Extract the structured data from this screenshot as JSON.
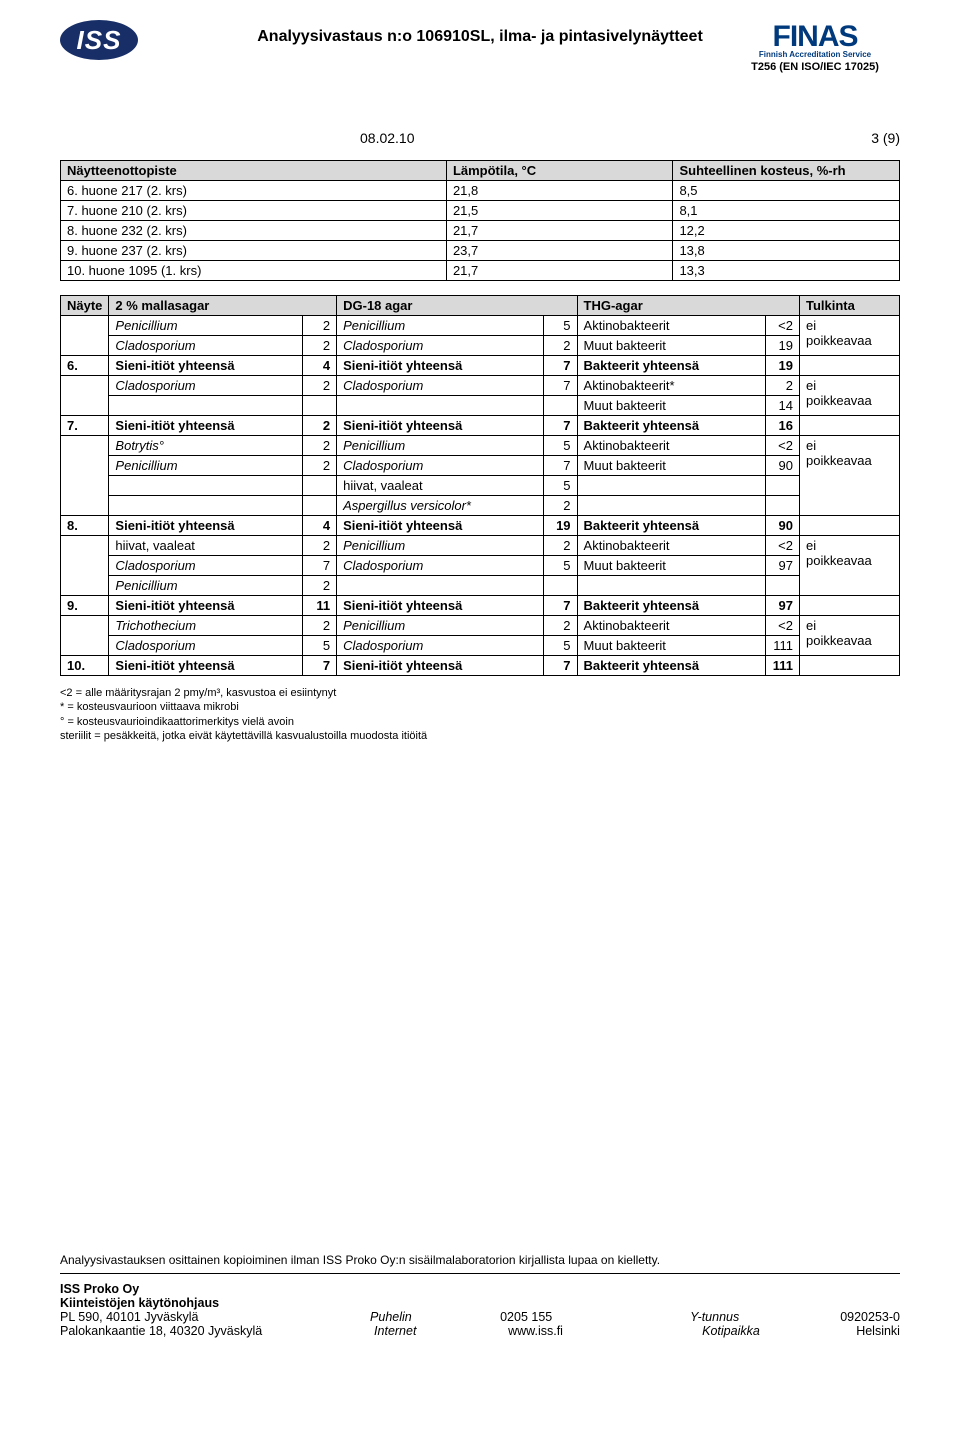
{
  "header": {
    "iss_logo_text": "ISS",
    "doc_title": "Analyysivastaus n:o 106910SL, ilma- ja pintasivelynäytteet",
    "finas_word": "FINAS",
    "finas_sub": "Finnish Accreditation Service",
    "finas_code": "T256 (EN ISO/IEC 17025)",
    "date": "08.02.10",
    "page": "3 (9)"
  },
  "env_table": {
    "headers": [
      "Näytteenottopiste",
      "Lämpötila, °C",
      "Suhteellinen kosteus, %-rh"
    ],
    "col_widths": [
      "46%",
      "27%",
      "27%"
    ],
    "rows": [
      [
        "6. huone 217 (2. krs)",
        "21,8",
        "8,5"
      ],
      [
        "7. huone 210 (2. krs)",
        "21,5",
        "8,1"
      ],
      [
        "8. huone 232 (2. krs)",
        "21,7",
        "12,2"
      ],
      [
        "9. huone 237 (2. krs)",
        "23,7",
        "13,8"
      ],
      [
        "10. huone 1095 (1. krs)",
        "21,7",
        "13,3"
      ]
    ]
  },
  "main_table": {
    "headers": [
      "Näyte",
      "2 % mallasagar",
      "DG-18 agar",
      "THG-agar",
      "Tulkinta"
    ],
    "groups": [
      {
        "rows": [
          [
            "Penicillium",
            "2",
            "Penicillium",
            "5",
            "Aktinobakteerit",
            "<2",
            "ei"
          ],
          [
            "Cladosporium",
            "2",
            "Cladosporium",
            "2",
            "Muut bakteerit",
            "19",
            "poikkeavaa"
          ]
        ],
        "totals_id": "6.",
        "totals": [
          "Sieni-itiöt yhteensä",
          "4",
          "Sieni-itiöt yhteensä",
          "7",
          "Bakteerit yhteensä",
          "19"
        ]
      },
      {
        "rows": [
          [
            "Cladosporium",
            "2",
            "Cladosporium",
            "7",
            "Aktinobakteerit*",
            "2",
            "ei"
          ],
          [
            "",
            "",
            "",
            "",
            "Muut bakteerit",
            "14",
            "poikkeavaa"
          ]
        ],
        "totals_id": "7.",
        "totals": [
          "Sieni-itiöt yhteensä",
          "2",
          "Sieni-itiöt yhteensä",
          "7",
          "Bakteerit yhteensä",
          "16"
        ]
      },
      {
        "rows": [
          [
            "Botrytis°",
            "2",
            "Penicillium",
            "5",
            "Aktinobakteerit",
            "<2",
            "ei"
          ],
          [
            "Penicillium",
            "2",
            "Cladosporium",
            "7",
            "Muut bakteerit",
            "90",
            "poikkeavaa"
          ],
          [
            "",
            "",
            "hiivat, vaaleat",
            "5",
            "",
            "",
            ""
          ],
          [
            "",
            "",
            "Aspergillus versicolor*",
            "2",
            "",
            "",
            ""
          ]
        ],
        "totals_id": "8.",
        "totals": [
          "Sieni-itiöt yhteensä",
          "4",
          "Sieni-itiöt yhteensä",
          "19",
          "Bakteerit yhteensä",
          "90"
        ]
      },
      {
        "rows": [
          [
            "hiivat, vaaleat",
            "2",
            "Penicillium",
            "2",
            "Aktinobakteerit",
            "<2",
            "ei"
          ],
          [
            "Cladosporium",
            "7",
            "Cladosporium",
            "5",
            "Muut bakteerit",
            "97",
            "poikkeavaa"
          ],
          [
            "Penicillium",
            "2",
            "",
            "",
            "",
            "",
            ""
          ]
        ],
        "totals_id": "9.",
        "totals": [
          "Sieni-itiöt yhteensä",
          "11",
          "Sieni-itiöt yhteensä",
          "7",
          "Bakteerit yhteensä",
          "97"
        ]
      },
      {
        "rows": [
          [
            "Trichothecium",
            "2",
            "Penicillium",
            "2",
            "Aktinobakteerit",
            "<2",
            "ei"
          ],
          [
            "Cladosporium",
            "5",
            "Cladosporium",
            "5",
            "Muut bakteerit",
            "111",
            "poikkeavaa"
          ]
        ],
        "totals_id": "10.",
        "totals": [
          "Sieni-itiöt yhteensä",
          "7",
          "Sieni-itiöt yhteensä",
          "7",
          "Bakteerit yhteensä",
          "111"
        ]
      }
    ]
  },
  "footnotes": [
    "<2 = alle määritysrajan 2 pmy/m³, kasvustoa ei esiintynyt",
    "* = kosteusvaurioon viittaava mikrobi",
    "° = kosteusvaurioindikaattorimerkitys vielä avoin",
    "steriilit = pesäkkeitä, jotka eivät käytettävillä kasvualustoilla muodosta itiöitä"
  ],
  "copyright": "Analyysivastauksen osittainen kopioiminen ilman ISS Proko Oy:n sisäilmalaboratorion kirjallista lupaa on kielletty.",
  "footer": {
    "company": "ISS Proko Oy",
    "dept": "Kiinteistöjen käytönohjaus",
    "lines": [
      [
        "PL 590, 40101 Jyväskylä",
        "Puhelin",
        "0205 155",
        "Y-tunnus",
        "0920253-0"
      ],
      [
        "Palokankaantie 18, 40320 Jyväskylä",
        "Internet",
        "www.iss.fi",
        "Kotipaikka",
        "Helsinki"
      ]
    ]
  }
}
